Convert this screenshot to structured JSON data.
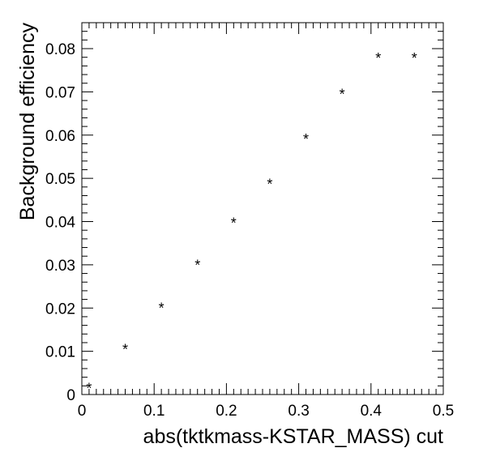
{
  "chart_data": {
    "type": "scatter",
    "title": "",
    "xlabel": "abs(tktkmass-KSTAR_MASS) cut",
    "ylabel": "Background efficiency",
    "xlim": [
      0,
      0.5
    ],
    "ylim": [
      0,
      0.086
    ],
    "grid": false,
    "legend": "none",
    "marker_symbol": "*",
    "x_ticks": [
      0,
      0.1,
      0.2,
      0.3,
      0.4,
      0.5
    ],
    "x_tick_labels": [
      "0",
      "0.1",
      "0.2",
      "0.3",
      "0.4",
      "0.5"
    ],
    "y_ticks": [
      0,
      0.01,
      0.02,
      0.03,
      0.04,
      0.05,
      0.06,
      0.07,
      0.08
    ],
    "y_tick_labels": [
      "0",
      "0.01",
      "0.02",
      "0.03",
      "0.04",
      "0.05",
      "0.06",
      "0.07",
      "0.08"
    ],
    "series": [
      {
        "x": [
          0.01,
          0.06,
          0.11,
          0.16,
          0.21,
          0.26,
          0.31,
          0.36,
          0.41,
          0.46
        ],
        "y": [
          0.0018,
          0.0108,
          0.0203,
          0.0303,
          0.04,
          0.049,
          0.0594,
          0.0698,
          0.0781,
          0.0781
        ]
      }
    ]
  }
}
